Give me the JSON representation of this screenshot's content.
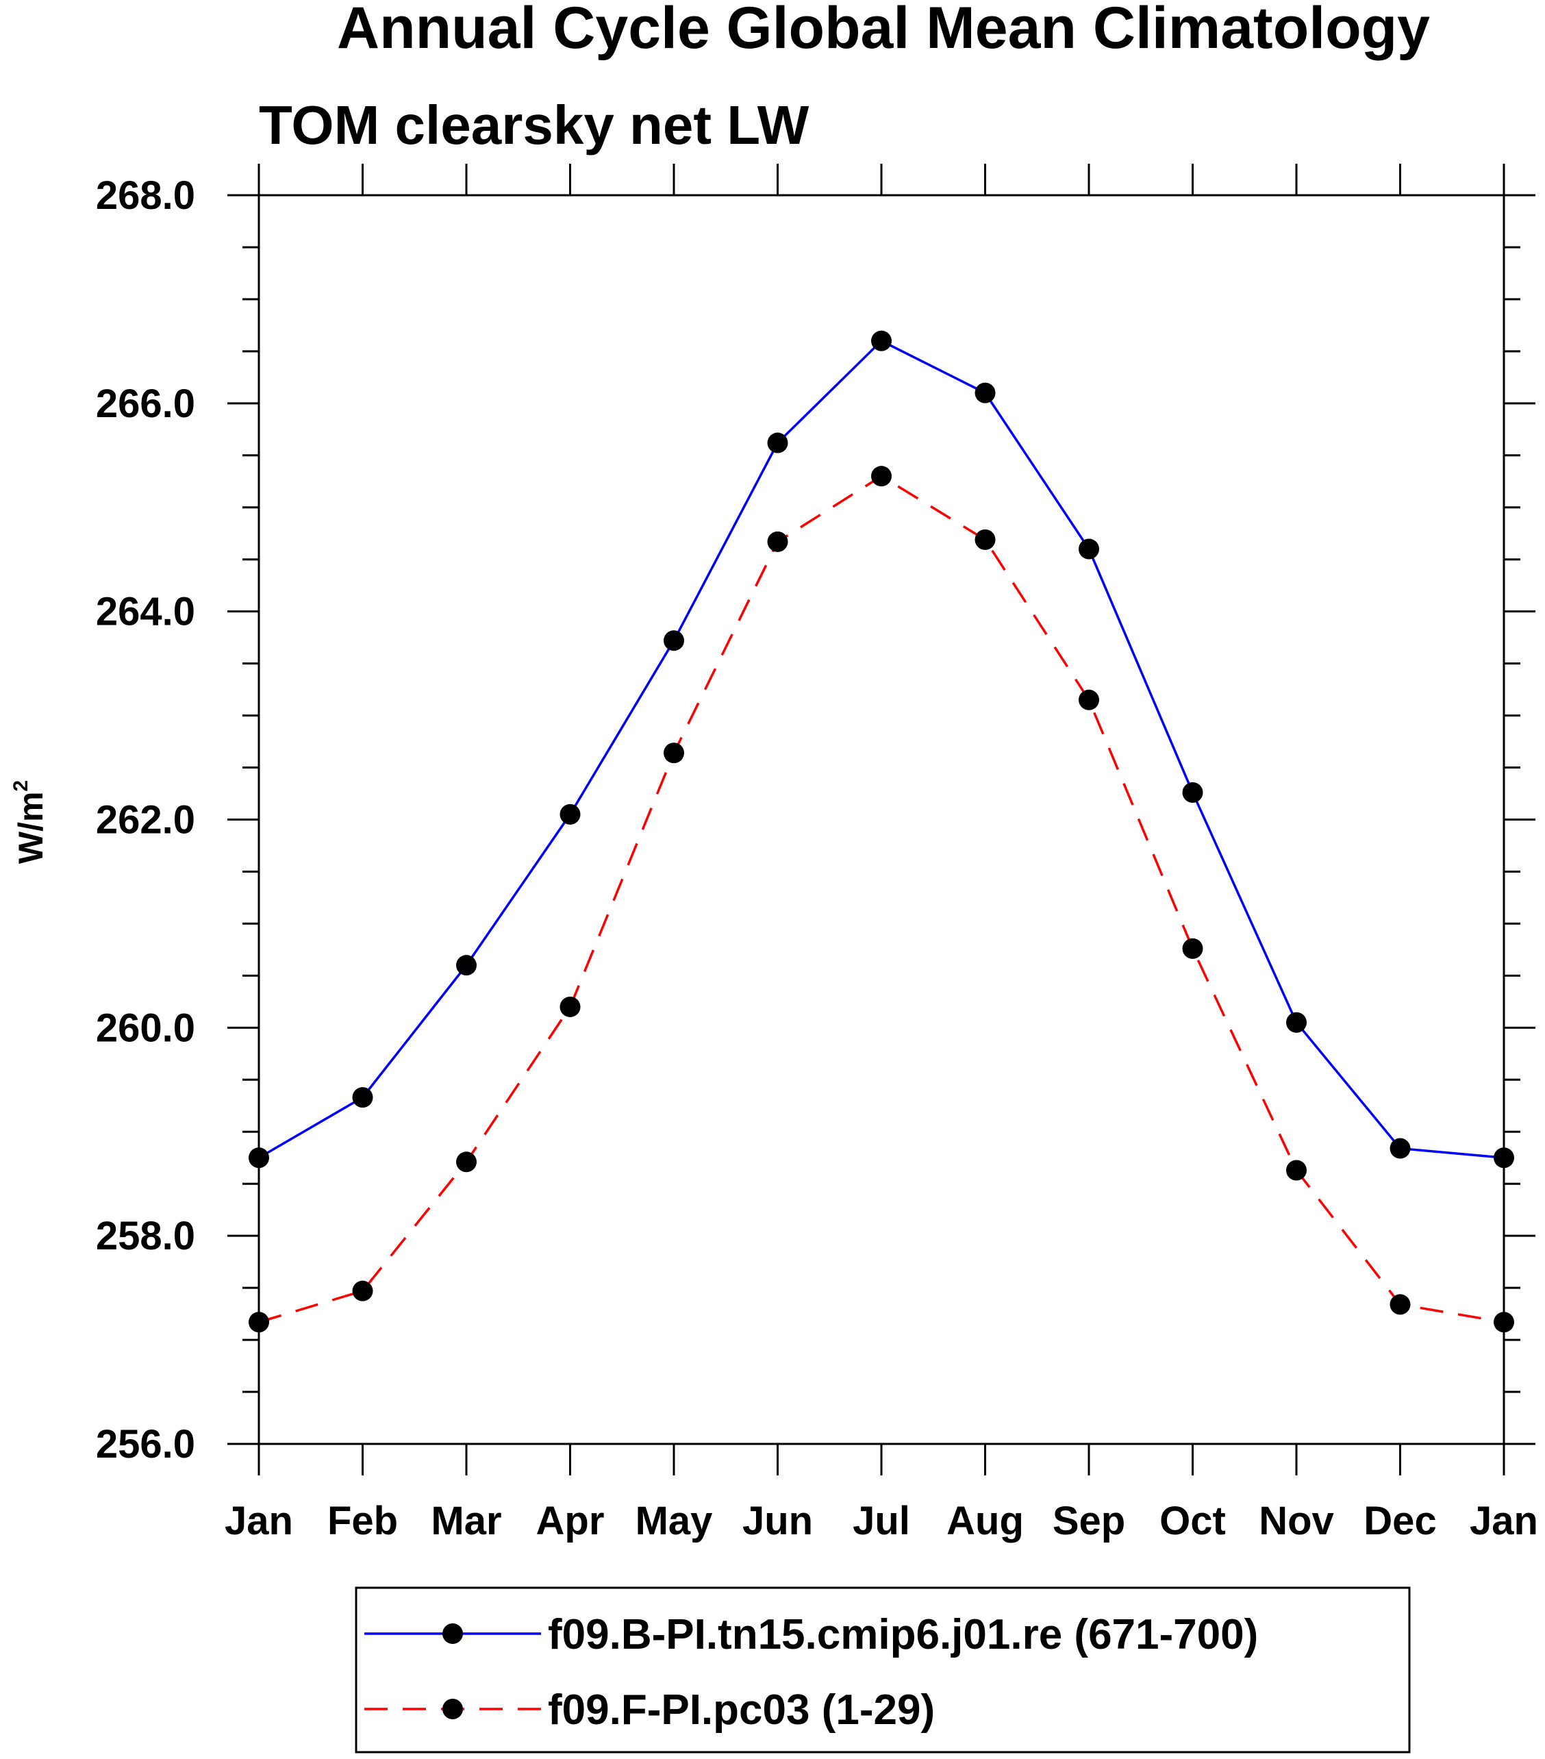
{
  "chart_data": {
    "type": "line",
    "title": "Annual Cycle Global Mean Climatology",
    "subtitle": "TOM clearsky net LW",
    "ylabel_base": "W/m",
    "ylabel_sup": "2",
    "categories": [
      "Jan",
      "Feb",
      "Mar",
      "Apr",
      "May",
      "Jun",
      "Jul",
      "Aug",
      "Sep",
      "Oct",
      "Nov",
      "Dec",
      "Jan"
    ],
    "y_ticks": [
      "268.0",
      "266.0",
      "264.0",
      "262.0",
      "260.0",
      "258.0",
      "256.0"
    ],
    "ylim": [
      256,
      268
    ],
    "grid": false,
    "legend_placement": "bottom",
    "series": [
      {
        "name": "f09.B-PI.tn15.cmip6.j01.re (671-700)",
        "color": "#0000ff",
        "dash": "solid",
        "marker": "filled-circle",
        "values": [
          258.75,
          259.33,
          260.6,
          262.05,
          263.72,
          265.62,
          266.6,
          266.1,
          264.6,
          262.26,
          260.05,
          258.84,
          258.75
        ]
      },
      {
        "name": "f09.F-PI.pc03 (1-29)",
        "color": "#ff0000",
        "dash": "dashed",
        "marker": "filled-circle",
        "values": [
          257.17,
          257.47,
          258.71,
          260.2,
          262.64,
          264.67,
          265.3,
          264.69,
          263.15,
          260.76,
          258.63,
          257.34,
          257.17
        ]
      }
    ]
  }
}
